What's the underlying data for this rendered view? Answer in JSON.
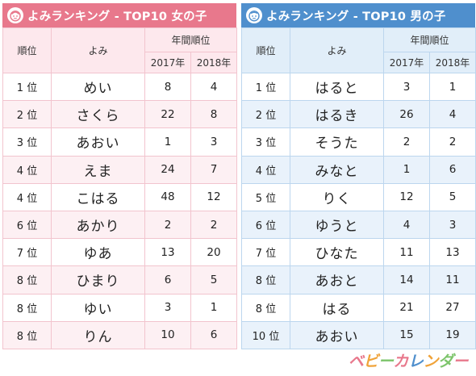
{
  "girls": {
    "title": "よみランキング - TOP10 女の子",
    "icon": "girl-face-icon",
    "accent": "#e8788c",
    "headers": {
      "rank": "順位",
      "yomi": "よみ",
      "yearly": "年間順位",
      "y2017": "2017年",
      "y2018": "2018年"
    },
    "rows": [
      {
        "rank": "1 位",
        "yomi": "めい",
        "y2017": "8",
        "y2018": "4"
      },
      {
        "rank": "2 位",
        "yomi": "さくら",
        "y2017": "22",
        "y2018": "8"
      },
      {
        "rank": "3 位",
        "yomi": "あおい",
        "y2017": "1",
        "y2018": "3"
      },
      {
        "rank": "4 位",
        "yomi": "えま",
        "y2017": "24",
        "y2018": "7"
      },
      {
        "rank": "4 位",
        "yomi": "こはる",
        "y2017": "48",
        "y2018": "12"
      },
      {
        "rank": "6 位",
        "yomi": "あかり",
        "y2017": "2",
        "y2018": "2"
      },
      {
        "rank": "7 位",
        "yomi": "ゆあ",
        "y2017": "13",
        "y2018": "20"
      },
      {
        "rank": "8 位",
        "yomi": "ひまり",
        "y2017": "6",
        "y2018": "5"
      },
      {
        "rank": "8 位",
        "yomi": "ゆい",
        "y2017": "3",
        "y2018": "1"
      },
      {
        "rank": "8 位",
        "yomi": "りん",
        "y2017": "10",
        "y2018": "6"
      }
    ]
  },
  "boys": {
    "title": "よみランキング - TOP10 男の子",
    "icon": "boy-face-icon",
    "accent": "#4f8fcd",
    "headers": {
      "rank": "順位",
      "yomi": "よみ",
      "yearly": "年間順位",
      "y2017": "2017年",
      "y2018": "2018年"
    },
    "rows": [
      {
        "rank": "1 位",
        "yomi": "はると",
        "y2017": "3",
        "y2018": "1"
      },
      {
        "rank": "2 位",
        "yomi": "はるき",
        "y2017": "26",
        "y2018": "4"
      },
      {
        "rank": "3 位",
        "yomi": "そうた",
        "y2017": "2",
        "y2018": "2"
      },
      {
        "rank": "4 位",
        "yomi": "みなと",
        "y2017": "1",
        "y2018": "6"
      },
      {
        "rank": "5 位",
        "yomi": "りく",
        "y2017": "12",
        "y2018": "5"
      },
      {
        "rank": "6 位",
        "yomi": "ゆうと",
        "y2017": "4",
        "y2018": "3"
      },
      {
        "rank": "7 位",
        "yomi": "ひなた",
        "y2017": "11",
        "y2018": "13"
      },
      {
        "rank": "8 位",
        "yomi": "あおと",
        "y2017": "14",
        "y2018": "11"
      },
      {
        "rank": "8 位",
        "yomi": "はる",
        "y2017": "21",
        "y2018": "27"
      },
      {
        "rank": "10 位",
        "yomi": "あおい",
        "y2017": "15",
        "y2018": "19"
      }
    ]
  },
  "logo": {
    "text": "ベビーカレンダー",
    "letters": [
      "ベ",
      "ビ",
      "ー",
      "カ",
      "レ",
      "ン",
      "ダ",
      "ー"
    ],
    "colors": [
      "#e8788c",
      "#f0a33a",
      "#7cc46a",
      "#e8788c",
      "#4f8fcd",
      "#f0a33a",
      "#7cc46a",
      "#e8788c"
    ]
  }
}
